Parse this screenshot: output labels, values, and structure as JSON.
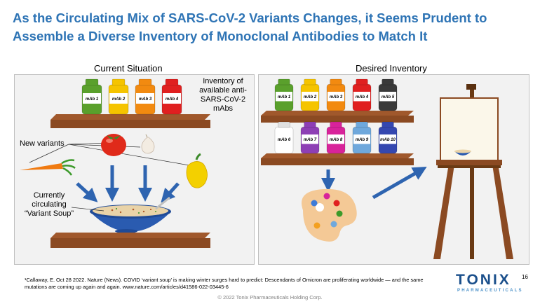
{
  "title": {
    "line1": "As the Circulating Mix of SARS-CoV-2 Variants Changes, it Seems Prudent to",
    "line2": "Assemble a Diverse Inventory of Monoclonal Antibodies to Match It"
  },
  "left_panel": {
    "heading": "Current Situation",
    "inventory_caption": [
      "Inventory of",
      "available anti-",
      "SARS-CoV-2",
      "mAbs"
    ],
    "new_variants_label": "New variants",
    "soup_caption": [
      "Currently",
      "circulating",
      "“Variant Soup”"
    ],
    "jars": [
      {
        "label": "mAb 1",
        "color": "#5aa02c"
      },
      {
        "label": "mAb 2",
        "color": "#f5c400"
      },
      {
        "label": "mAb 3",
        "color": "#f28a10"
      },
      {
        "label": "mAb 4",
        "color": "#e02020"
      }
    ]
  },
  "right_panel": {
    "heading": "Desired Inventory",
    "jars_top": [
      {
        "label": "mAb 1",
        "color": "#5aa02c"
      },
      {
        "label": "mAb 2",
        "color": "#f5c400"
      },
      {
        "label": "mAb 3",
        "color": "#f28a10"
      },
      {
        "label": "mAb 4",
        "color": "#e02020"
      },
      {
        "label": "mAb 5",
        "color": "#3a3a3a"
      }
    ],
    "jars_bottom": [
      {
        "label": "mAb 6",
        "color": "#ffffff"
      },
      {
        "label": "mAb 7",
        "color": "#8e3fb5"
      },
      {
        "label": "mAb 8",
        "color": "#d8239a"
      },
      {
        "label": "mAb 9",
        "color": "#6fa8dc"
      },
      {
        "label": "mAb 10",
        "color": "#3548b0"
      }
    ]
  },
  "footnote": {
    "citation": "Callaway, E. Oct 28 2022. Nature (News).",
    "text": "COVID ‘variant soup’ is making winter surges hard to predict: Descendants of Omicron are proliferating worldwide — and the same mutations are coming up again and again. www.nature.com/articles/d41586-022-03445-6"
  },
  "copyright": "© 2022 Tonix Pharmaceuticals Holding Corp.",
  "page_number": "16",
  "logo": {
    "word": "TONIX",
    "sub": "PHARMACEUTICALS"
  },
  "colors": {
    "title": "#2e74b5",
    "arrow": "#2e64b0",
    "shelf": "#8b4a22"
  }
}
